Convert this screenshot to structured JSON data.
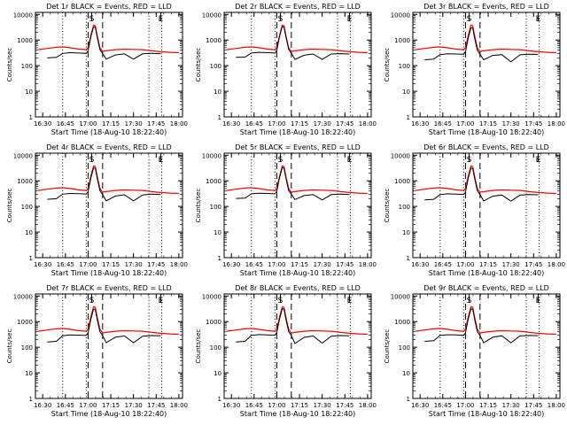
{
  "shared": {
    "type": "line",
    "xlabel": "Start Time (18-Aug-10 18:22:40)",
    "ylabel": "Counts/sec",
    "x_tick_labels": [
      "16:30",
      "16:45",
      "17:00",
      "17:15",
      "17:30",
      "17:45",
      "18:00"
    ],
    "x_tick_hours": [
      16.5,
      16.75,
      17.0,
      17.25,
      17.5,
      17.75,
      18.0
    ],
    "xlim_hours": [
      16.42,
      18.04
    ],
    "y_scale": "log",
    "ylim": [
      1,
      12000
    ],
    "y_tick_values": [
      1,
      10,
      100,
      1000,
      10000
    ],
    "y_tick_labels": [
      "1",
      "10",
      "100",
      "1000",
      "10000"
    ],
    "marker_labels": [
      "S",
      "E"
    ],
    "marker_hours": [
      17.04,
      17.8
    ],
    "saa_dashed_hours": [
      17.0,
      17.16
    ],
    "night_dotted_hours": [
      16.72,
      16.98,
      17.67,
      17.81
    ],
    "series_colors": {
      "events": "#000000",
      "lld": "#ff0000"
    },
    "chart_data": {
      "x_hours": [
        16.45,
        16.55,
        16.65,
        16.72,
        16.8,
        16.9,
        16.98,
        17.0,
        17.03,
        17.06,
        17.08,
        17.1,
        17.13,
        17.16,
        17.2,
        17.3,
        17.4,
        17.5,
        17.6,
        17.7,
        17.8,
        17.9,
        18.0
      ],
      "lld": [
        420,
        470,
        520,
        540,
        500,
        440,
        420,
        500,
        1500,
        3800,
        3600,
        1500,
        500,
        360,
        380,
        420,
        440,
        430,
        420,
        380,
        350,
        330,
        320
      ]
    }
  },
  "panels": [
    {
      "title": "Det 1r BLACK = Events, RED = LLD",
      "events": [
        null,
        200,
        210,
        300,
        320,
        310,
        300,
        380,
        1300,
        3300,
        3100,
        1300,
        420,
        300,
        180,
        260,
        290,
        180,
        290,
        300,
        290,
        null,
        null
      ]
    },
    {
      "title": "Det 2r BLACK = Events, RED = LLD",
      "events": [
        null,
        210,
        215,
        310,
        330,
        320,
        310,
        390,
        1350,
        3400,
        3150,
        1350,
        430,
        310,
        175,
        255,
        285,
        175,
        285,
        295,
        285,
        null,
        null
      ]
    },
    {
      "title": "Det 3r BLACK = Events, RED = LLD",
      "events": [
        null,
        170,
        180,
        270,
        290,
        285,
        280,
        350,
        1200,
        3000,
        2900,
        1200,
        400,
        280,
        170,
        250,
        270,
        140,
        265,
        280,
        275,
        null,
        null
      ]
    },
    {
      "title": "Det 4r BLACK = Events, RED = LLD",
      "events": [
        null,
        190,
        200,
        300,
        320,
        315,
        305,
        370,
        1250,
        3200,
        3050,
        1250,
        410,
        295,
        165,
        255,
        285,
        165,
        280,
        300,
        290,
        null,
        null
      ]
    },
    {
      "title": "Det 5r BLACK = Events, RED = LLD",
      "events": [
        null,
        205,
        210,
        310,
        325,
        320,
        310,
        385,
        1300,
        3300,
        3100,
        1300,
        420,
        305,
        185,
        265,
        290,
        180,
        290,
        300,
        292,
        null,
        null
      ]
    },
    {
      "title": "Det 6r BLACK = Events, RED = LLD",
      "events": [
        null,
        180,
        190,
        290,
        310,
        300,
        295,
        365,
        1250,
        3150,
        3000,
        1250,
        410,
        290,
        165,
        250,
        280,
        160,
        275,
        290,
        285,
        null,
        null
      ]
    },
    {
      "title": "Det 7r BLACK = Events, RED = LLD",
      "events": [
        null,
        160,
        170,
        280,
        300,
        295,
        290,
        360,
        1200,
        3100,
        2950,
        1200,
        400,
        285,
        150,
        245,
        275,
        150,
        270,
        285,
        280,
        null,
        null
      ]
    },
    {
      "title": "Det 8r BLACK = Events, RED = LLD",
      "events": [
        null,
        160,
        170,
        290,
        310,
        300,
        295,
        370,
        1250,
        3200,
        3000,
        1250,
        410,
        290,
        140,
        240,
        275,
        145,
        270,
        285,
        280,
        null,
        null
      ]
    },
    {
      "title": "Det 9r BLACK = Events, RED = LLD",
      "events": [
        null,
        170,
        180,
        290,
        305,
        300,
        290,
        365,
        1250,
        3150,
        3000,
        1250,
        405,
        288,
        150,
        245,
        280,
        150,
        275,
        288,
        282,
        null,
        null
      ]
    }
  ]
}
